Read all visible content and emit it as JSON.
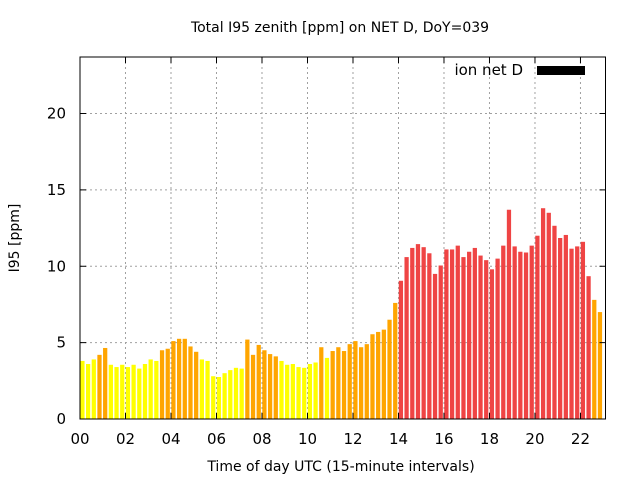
{
  "chart_data": {
    "type": "bar",
    "title": "Total I95 zenith [ppm] on NET D, DoY=039",
    "xlabel": "Time of day UTC (15-minute intervals)",
    "ylabel": "I95 [ppm]",
    "xlim": [
      0,
      23.1
    ],
    "ylim": [
      0,
      23.7
    ],
    "grid": true,
    "x_ticks": [
      0,
      2,
      4,
      6,
      8,
      10,
      12,
      14,
      16,
      18,
      20,
      22
    ],
    "x_tick_labels": [
      "00",
      "02",
      "04",
      "06",
      "08",
      "10",
      "12",
      "14",
      "16",
      "18",
      "20",
      "22"
    ],
    "y_ticks": [
      0,
      5,
      10,
      15,
      20
    ],
    "y_tick_labels": [
      "0",
      "5",
      "10",
      "15",
      "20"
    ],
    "bin_hours": 0.25,
    "legend": {
      "label": "ion net D",
      "color": "#000000",
      "placement": "top-right"
    },
    "level_colors": {
      "low": "#ffff00",
      "medium": "#ffa500",
      "high": "#ef4444"
    },
    "series": [
      {
        "name": "ion net D",
        "values": [
          3.8,
          3.6,
          3.9,
          4.2,
          4.65,
          3.55,
          3.4,
          3.55,
          3.4,
          3.55,
          3.3,
          3.6,
          3.9,
          3.8,
          4.5,
          4.6,
          5.1,
          5.25,
          5.25,
          4.75,
          4.4,
          3.9,
          3.8,
          2.8,
          2.75,
          3.0,
          3.2,
          3.35,
          3.3,
          5.2,
          4.2,
          4.85,
          4.5,
          4.25,
          4.1,
          3.8,
          3.55,
          3.6,
          3.4,
          3.35,
          3.6,
          3.7,
          4.7,
          4.0,
          4.45,
          4.7,
          4.45,
          4.9,
          5.1,
          4.7,
          4.9,
          5.55,
          5.7,
          5.85,
          6.5,
          7.6,
          9.05,
          10.6,
          11.2,
          11.45,
          11.25,
          10.85,
          9.5,
          10.05,
          11.1,
          11.1,
          11.35,
          10.6,
          10.95,
          11.2,
          10.7,
          10.4,
          9.8,
          10.5,
          11.35,
          13.7,
          11.3,
          10.95,
          10.9,
          11.35,
          12.0,
          13.8,
          13.5,
          12.65,
          11.85,
          12.05,
          11.15,
          11.3,
          11.6,
          9.35,
          7.8,
          7.0
        ],
        "levels": [
          "low",
          "low",
          "low",
          "medium",
          "medium",
          "low",
          "low",
          "low",
          "low",
          "low",
          "low",
          "low",
          "low",
          "low",
          "medium",
          "medium",
          "medium",
          "medium",
          "medium",
          "medium",
          "medium",
          "low",
          "low",
          "low",
          "low",
          "low",
          "low",
          "low",
          "low",
          "medium",
          "medium",
          "medium",
          "medium",
          "medium",
          "medium",
          "low",
          "low",
          "low",
          "low",
          "low",
          "low",
          "low",
          "medium",
          "low",
          "medium",
          "medium",
          "medium",
          "medium",
          "medium",
          "medium",
          "medium",
          "medium",
          "medium",
          "medium",
          "medium",
          "medium",
          "high",
          "high",
          "high",
          "high",
          "high",
          "high",
          "high",
          "high",
          "high",
          "high",
          "high",
          "high",
          "high",
          "high",
          "high",
          "high",
          "high",
          "high",
          "high",
          "high",
          "high",
          "high",
          "high",
          "high",
          "high",
          "high",
          "high",
          "high",
          "high",
          "high",
          "high",
          "high",
          "high",
          "high",
          "medium",
          "medium"
        ]
      }
    ]
  }
}
